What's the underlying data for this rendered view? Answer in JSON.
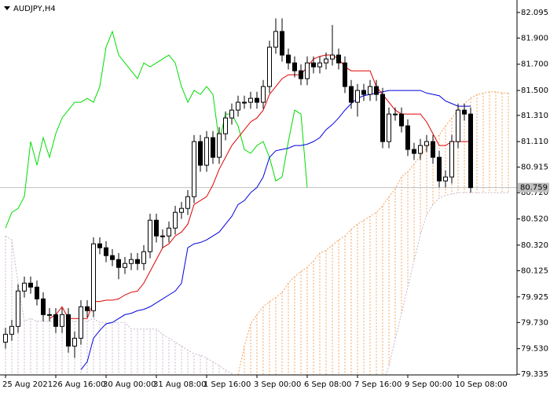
{
  "chart_data": {
    "type": "candlestick",
    "title": "AUDJPY,H4",
    "categories": [
      "25 Aug 2021",
      null,
      null,
      null,
      null,
      null,
      null,
      null,
      "26 Aug 16:00",
      null,
      null,
      null,
      null,
      null,
      null,
      null,
      "30 Aug 00:00",
      null,
      null,
      null,
      null,
      null,
      null,
      null,
      "31 Aug 08:00",
      null,
      null,
      null,
      null,
      null,
      null,
      null,
      "1 Sep 16:00",
      null,
      null,
      null,
      null,
      null,
      null,
      null,
      "3 Sep 00:00",
      null,
      null,
      null,
      null,
      null,
      null,
      null,
      "6 Sep 08:00",
      null,
      null,
      null,
      null,
      null,
      null,
      null,
      "7 Sep 16:00",
      null,
      null,
      null,
      null,
      null,
      null,
      null,
      "9 Sep 00:00",
      null,
      null,
      null,
      null,
      null,
      null,
      null,
      "10 Sep 08:00",
      null,
      null,
      null,
      null,
      null,
      null,
      null,
      null
    ],
    "open": [
      79.58,
      79.64,
      79.7,
      79.97,
      80.03,
      80.0,
      79.91,
      79.79,
      79.79,
      79.7,
      79.79,
      79.55,
      79.61,
      79.85,
      79.82,
      80.33,
      80.3,
      80.24,
      80.21,
      80.15,
      80.18,
      80.21,
      80.18,
      80.27,
      80.51,
      80.39,
      80.39,
      80.45,
      80.57,
      80.6,
      80.69,
      81.11,
      80.93,
      81.14,
      80.99,
      81.17,
      81.29,
      81.35,
      81.41,
      81.41,
      81.44,
      81.41,
      81.53,
      81.83,
      81.95,
      81.77,
      81.71,
      81.65,
      81.59,
      81.71,
      81.68,
      81.71,
      81.74,
      81.77,
      81.71,
      81.53,
      81.41,
      81.5,
      81.47,
      81.53,
      81.47,
      81.11,
      81.32,
      81.32,
      81.23,
      81.05,
      81.02,
      81.08,
      81.11,
      80.99,
      80.81,
      80.84,
      81.11,
      81.35,
      81.32,
      null,
      null,
      null,
      null,
      null,
      null
    ],
    "high": [
      79.69,
      79.75,
      80.02,
      80.08,
      80.08,
      80.05,
      79.96,
      79.84,
      79.84,
      79.84,
      79.84,
      79.66,
      79.9,
      79.9,
      80.38,
      80.38,
      80.35,
      80.29,
      80.26,
      80.23,
      80.26,
      80.26,
      80.32,
      80.56,
      80.56,
      80.44,
      80.5,
      80.62,
      80.65,
      80.74,
      81.16,
      81.16,
      81.19,
      81.19,
      81.22,
      81.34,
      81.4,
      81.46,
      81.46,
      81.49,
      81.49,
      81.58,
      81.88,
      82.05,
      82.05,
      81.82,
      81.76,
      81.7,
      81.76,
      81.76,
      81.76,
      81.79,
      82.0,
      81.82,
      81.76,
      81.58,
      81.55,
      81.55,
      81.58,
      81.58,
      81.52,
      81.37,
      81.37,
      81.37,
      81.28,
      81.1,
      81.13,
      81.16,
      81.16,
      81.04,
      80.89,
      81.16,
      81.4,
      81.4,
      81.37,
      null,
      null,
      null,
      null,
      null,
      null
    ],
    "low": [
      79.53,
      79.59,
      79.65,
      79.92,
      79.95,
      79.86,
      79.74,
      79.74,
      79.65,
      79.65,
      79.5,
      79.46,
      79.56,
      79.77,
      79.77,
      80.25,
      80.19,
      80.16,
      80.06,
      80.1,
      80.13,
      80.13,
      80.13,
      80.22,
      80.34,
      80.3,
      80.34,
      80.4,
      80.52,
      80.55,
      80.64,
      80.88,
      80.88,
      80.94,
      80.94,
      81.12,
      81.24,
      81.3,
      81.36,
      81.36,
      81.36,
      81.36,
      81.48,
      81.78,
      81.72,
      81.66,
      81.6,
      81.54,
      81.54,
      81.63,
      81.63,
      81.66,
      81.69,
      81.66,
      81.48,
      81.36,
      81.3,
      81.42,
      81.42,
      81.42,
      81.06,
      81.06,
      81.27,
      81.18,
      81.0,
      80.97,
      80.97,
      81.03,
      80.94,
      80.76,
      80.76,
      80.79,
      81.06,
      81.27,
      80.72,
      null,
      null,
      null,
      null,
      null,
      null
    ],
    "close": [
      79.64,
      79.7,
      79.97,
      80.03,
      80.0,
      79.91,
      79.79,
      79.79,
      79.7,
      79.79,
      79.55,
      79.61,
      79.85,
      79.82,
      80.33,
      80.3,
      80.24,
      80.21,
      80.15,
      80.18,
      80.21,
      80.18,
      80.27,
      80.51,
      80.39,
      80.39,
      80.45,
      80.57,
      80.6,
      80.69,
      81.11,
      80.93,
      81.14,
      80.99,
      81.17,
      81.29,
      81.35,
      81.41,
      81.41,
      81.44,
      81.41,
      81.53,
      81.83,
      81.95,
      81.77,
      81.71,
      81.65,
      81.59,
      81.71,
      81.68,
      81.71,
      81.74,
      81.77,
      81.71,
      81.53,
      81.41,
      81.5,
      81.47,
      81.53,
      81.47,
      81.11,
      81.32,
      81.32,
      81.23,
      81.05,
      81.02,
      81.08,
      81.11,
      80.99,
      80.81,
      80.84,
      81.11,
      81.35,
      81.32,
      80.759,
      null,
      null,
      null,
      null,
      null,
      null
    ],
    "bull_color": "#ffffff",
    "bear_color": "#000000",
    "indicator_lines": [
      {
        "color": "#00dd00",
        "values": [
          80.45,
          80.57,
          80.6,
          80.69,
          81.11,
          80.93,
          81.14,
          80.99,
          81.17,
          81.29,
          81.35,
          81.41,
          81.41,
          81.44,
          81.41,
          81.53,
          81.83,
          81.95,
          81.77,
          81.71,
          81.65,
          81.59,
          81.71,
          81.68,
          81.71,
          81.74,
          81.77,
          81.71,
          81.53,
          81.41,
          81.5,
          81.47,
          81.53,
          81.47,
          81.11,
          81.32,
          81.32,
          81.23,
          81.05,
          81.02,
          81.08,
          81.11,
          80.99,
          80.81,
          80.84,
          81.11,
          81.35,
          81.32,
          80.759,
          null,
          null,
          null,
          null,
          null,
          null,
          null,
          null,
          null,
          null,
          null,
          null,
          null,
          null,
          null,
          null,
          null,
          null,
          null,
          null,
          null,
          null,
          null,
          null,
          null,
          null,
          null,
          null,
          null,
          null,
          null,
          null
        ]
      },
      {
        "color": "#0000e0",
        "values": [
          null,
          null,
          null,
          null,
          null,
          null,
          null,
          null,
          null,
          null,
          null,
          null,
          79.37,
          79.43,
          79.61,
          79.67,
          79.72,
          79.73,
          79.76,
          79.79,
          79.8,
          79.82,
          79.83,
          79.85,
          79.88,
          79.91,
          79.94,
          79.97,
          80.03,
          80.3,
          80.33,
          80.34,
          80.36,
          80.39,
          80.42,
          80.48,
          80.54,
          80.63,
          80.66,
          80.72,
          80.76,
          80.84,
          80.99,
          81.04,
          81.05,
          81.06,
          81.08,
          81.08,
          81.09,
          81.11,
          81.14,
          81.2,
          81.24,
          81.29,
          81.35,
          81.4,
          81.44,
          81.46,
          81.47,
          81.48,
          81.49,
          81.5,
          81.5,
          81.5,
          81.5,
          81.5,
          81.5,
          81.48,
          81.47,
          81.46,
          81.42,
          81.4,
          81.38,
          81.38,
          81.38,
          null,
          null,
          null,
          null,
          null,
          null
        ]
      },
      {
        "color": "#e00000",
        "values": [
          null,
          null,
          null,
          null,
          null,
          null,
          null,
          79.76,
          79.79,
          79.85,
          79.76,
          79.76,
          79.76,
          79.76,
          79.89,
          79.89,
          79.9,
          79.9,
          79.91,
          79.94,
          79.96,
          79.97,
          80.03,
          80.12,
          80.21,
          80.3,
          80.33,
          80.39,
          80.42,
          80.48,
          80.63,
          80.66,
          80.69,
          80.78,
          80.9,
          80.99,
          81.08,
          81.14,
          81.2,
          81.26,
          81.29,
          81.35,
          81.47,
          81.53,
          81.59,
          81.62,
          81.62,
          81.62,
          81.68,
          81.74,
          81.76,
          81.77,
          81.77,
          81.74,
          81.68,
          81.65,
          81.65,
          81.65,
          81.65,
          81.53,
          81.47,
          81.41,
          81.35,
          81.32,
          81.32,
          81.32,
          81.32,
          81.26,
          81.17,
          81.08,
          81.08,
          81.11,
          81.11,
          81.11,
          81.11,
          null,
          null,
          null,
          null,
          null,
          null
        ]
      }
    ],
    "span_a": {
      "color": "#f4a460",
      "values": [
        79.25,
        79.25,
        79.25,
        79.25,
        79.25,
        79.25,
        79.25,
        79.25,
        79.25,
        79.25,
        79.25,
        79.25,
        79.25,
        79.25,
        79.25,
        79.25,
        79.25,
        79.25,
        79.25,
        79.25,
        79.25,
        79.25,
        79.25,
        79.25,
        79.25,
        79.25,
        79.25,
        79.25,
        79.25,
        79.25,
        79.25,
        79.25,
        79.25,
        79.25,
        79.25,
        79.25,
        79.25,
        79.33,
        79.55,
        79.72,
        79.79,
        79.85,
        79.89,
        79.92,
        79.96,
        80.03,
        80.08,
        80.12,
        80.15,
        80.2,
        80.26,
        80.28,
        80.32,
        80.36,
        80.39,
        80.44,
        80.48,
        80.51,
        80.54,
        80.57,
        80.62,
        80.69,
        80.75,
        80.84,
        80.88,
        80.94,
        81.0,
        81.06,
        81.12,
        81.16,
        81.23,
        81.29,
        81.35,
        81.4,
        81.44,
        81.47,
        81.48,
        81.49,
        81.49,
        81.48,
        81.48
      ]
    },
    "span_b": {
      "color": "#c8b4c8",
      "values": [
        80.39,
        80.36,
        80.03,
        79.74,
        79.76,
        79.74,
        79.74,
        79.74,
        79.74,
        79.74,
        79.74,
        79.74,
        79.74,
        79.74,
        79.76,
        79.73,
        79.73,
        79.73,
        79.73,
        79.73,
        79.68,
        79.68,
        79.68,
        79.68,
        79.68,
        79.64,
        79.61,
        79.58,
        79.55,
        79.52,
        79.49,
        79.48,
        79.46,
        79.43,
        79.4,
        79.37,
        79.34,
        79.25,
        79.25,
        79.25,
        79.25,
        79.25,
        79.25,
        79.25,
        79.25,
        79.25,
        79.25,
        79.25,
        79.25,
        79.25,
        79.25,
        79.25,
        79.25,
        79.25,
        79.25,
        79.25,
        79.25,
        79.25,
        79.25,
        79.25,
        79.25,
        79.4,
        79.6,
        79.8,
        80.0,
        80.2,
        80.4,
        80.55,
        80.63,
        80.68,
        80.7,
        80.71,
        80.72,
        80.72,
        80.72,
        80.72,
        80.72,
        80.72,
        80.72,
        80.72,
        80.72
      ]
    },
    "current_price": 80.759,
    "ylim": [
      79.33,
      82.19
    ],
    "yticks": [
      82.095,
      {
        "value": 81.9,
        "label": "81.900"
      },
      {
        "value": 81.7,
        "label": "81.700"
      },
      {
        "value": 81.5,
        "label": "81.500"
      },
      {
        "value": 81.31,
        "label": "81.310"
      },
      {
        "value": 81.11,
        "label": "81.110"
      },
      80.915,
      {
        "value": 80.72,
        "label": "80.720"
      },
      {
        "value": 80.52,
        "label": "80.520"
      },
      {
        "value": 80.32,
        "label": "80.320"
      },
      80.125,
      79.925,
      {
        "value": 79.73,
        "label": "79.730"
      },
      {
        "value": 79.53,
        "label": "79.530"
      },
      79.335
    ]
  }
}
